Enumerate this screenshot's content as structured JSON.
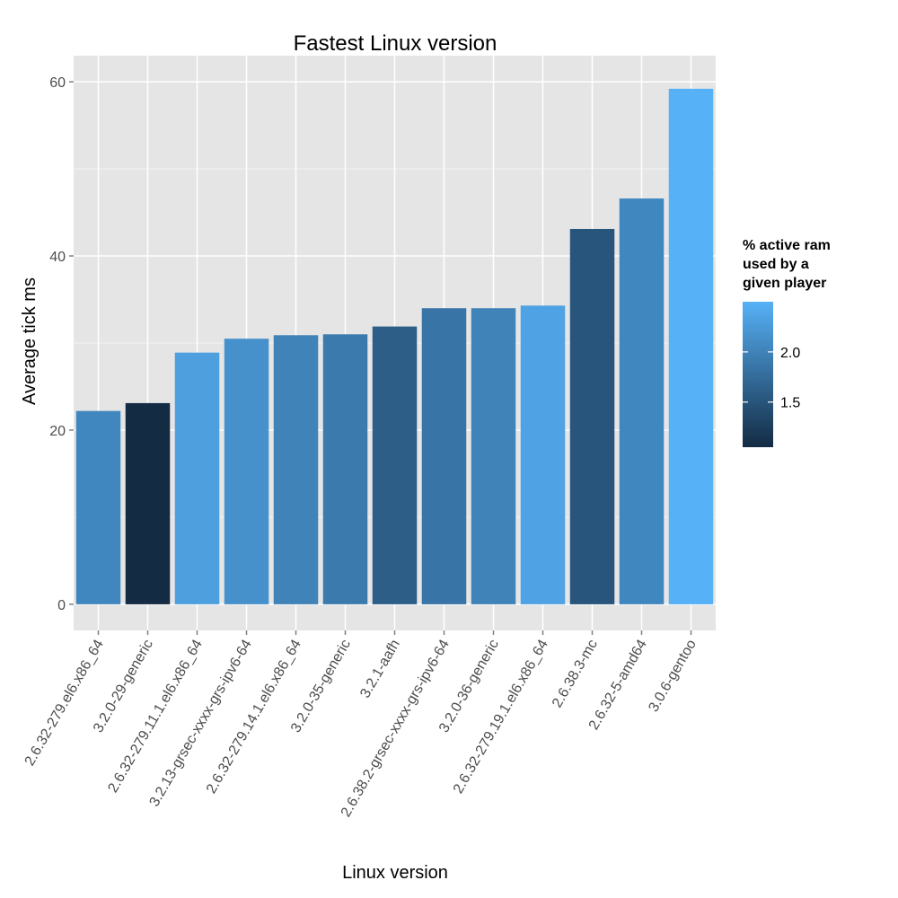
{
  "chart_data": {
    "type": "bar",
    "title": "Fastest Linux version",
    "xlabel": "Linux version",
    "ylabel": "Average tick ms",
    "ylim": [
      -3,
      63
    ],
    "yticks": [
      0,
      20,
      40,
      60
    ],
    "grid": true,
    "categories": [
      "2.6.32-279.el6.x86_64",
      "3.2.0-29-generic",
      "2.6.32-279.11.1.el6.x86_64",
      "3.2.13-grsec-xxxx-grs-ipv6-64",
      "2.6.32-279.14.1.el6.x86_64",
      "3.2.0-35-generic",
      "3.2.1-aafh",
      "2.6.38.2-grsec-xxxx-grs-ipv6-64",
      "3.2.0-36-generic",
      "2.6.32-279.19.1.el6.x86_64",
      "2.6.38.3-mc",
      "2.6.32-5-amd64",
      "3.0.6-gentoo"
    ],
    "values": [
      22.2,
      23.1,
      28.9,
      30.5,
      30.9,
      31.0,
      31.9,
      34.0,
      34.0,
      34.3,
      43.1,
      46.6,
      59.2
    ],
    "fill_values": [
      2.05,
      1.05,
      2.3,
      2.15,
      2.0,
      1.9,
      1.6,
      1.85,
      2.0,
      2.35,
      1.5,
      2.05,
      2.5
    ],
    "legend": {
      "title_lines": [
        "% active ram",
        "used by a",
        "given player"
      ],
      "position": "right",
      "range": [
        1.05,
        2.5
      ],
      "ticks": [
        1.5,
        2.0
      ],
      "tick_labels": [
        "1.5",
        "2.0"
      ],
      "low_color": "#132B43",
      "high_color": "#56B1F7"
    },
    "panel_color": "#e5e5e5",
    "grid_color": "#ffffff"
  }
}
